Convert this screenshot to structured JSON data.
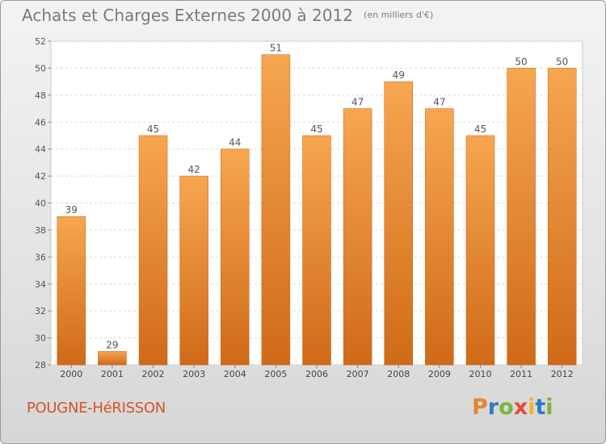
{
  "title": "Achats et Charges Externes 2000 à 2012",
  "unit_note": "(en milliers d'€)",
  "commune": "POUGNE-HéRISSON",
  "logo": {
    "text": "Proxiti",
    "letters": [
      "P",
      "r",
      "o",
      "x",
      "i",
      "t",
      "i"
    ]
  },
  "colors": {
    "bar_top": "#f7a650",
    "bar_bottom": "#cf6a18",
    "commune": "#d4542a"
  },
  "chart_data": {
    "type": "bar",
    "categories": [
      "2000",
      "2001",
      "2002",
      "2003",
      "2004",
      "2005",
      "2006",
      "2007",
      "2008",
      "2009",
      "2010",
      "2011",
      "2012"
    ],
    "values": [
      39,
      29,
      45,
      42,
      44,
      51,
      45,
      47,
      49,
      47,
      45,
      50,
      50
    ],
    "data_labels": [
      "39",
      "29",
      "45",
      "42",
      "44",
      "51",
      "45",
      "47",
      "49",
      "47",
      "45",
      "50",
      "50"
    ],
    "ylim": [
      28,
      52
    ],
    "yticks": [
      28,
      30,
      32,
      34,
      36,
      38,
      40,
      42,
      44,
      46,
      48,
      50,
      52
    ],
    "ytick_labels": [
      "28",
      "30",
      "32",
      "34",
      "36",
      "38",
      "40",
      "42",
      "44",
      "46",
      "48",
      "50",
      "52"
    ],
    "grid": true,
    "xlabel": "",
    "ylabel": ""
  }
}
